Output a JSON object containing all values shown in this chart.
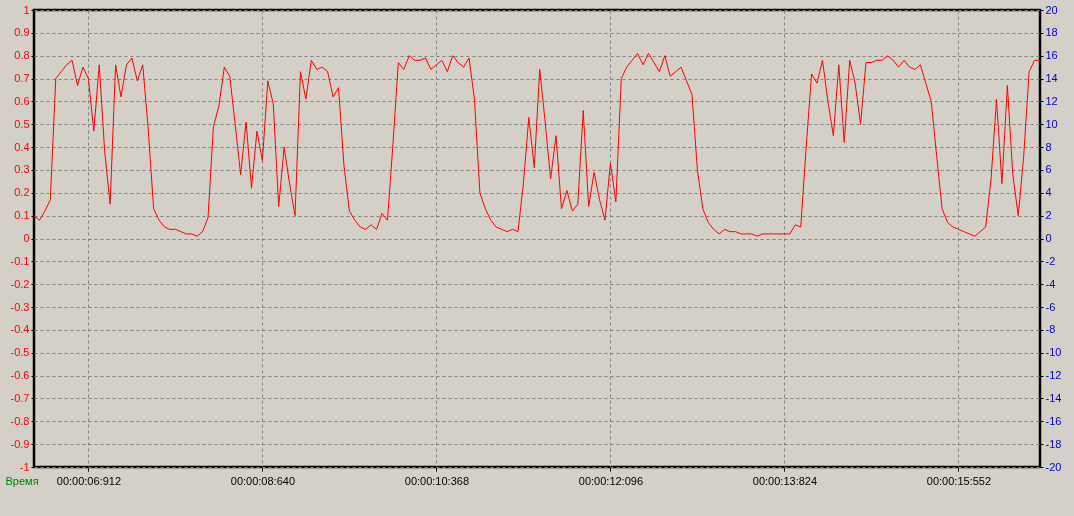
{
  "chart_data": {
    "type": "line",
    "xlabel": "Время",
    "categories": [
      null,
      null,
      null,
      null,
      null,
      null,
      null,
      null,
      null,
      null,
      "00:00:06:912",
      null,
      null,
      null,
      null,
      null,
      null,
      null,
      null,
      null,
      null,
      null,
      null,
      null,
      null,
      null,
      null,
      null,
      null,
      null,
      null,
      null,
      null,
      null,
      null,
      null,
      null,
      null,
      null,
      null,
      null,
      null,
      "00:00:08:640",
      null,
      null,
      null,
      null,
      null,
      null,
      null,
      null,
      null,
      null,
      null,
      null,
      null,
      null,
      null,
      null,
      null,
      null,
      null,
      null,
      null,
      null,
      null,
      null,
      null,
      null,
      null,
      null,
      null,
      null,
      null,
      "00:00:10:368",
      null,
      null,
      null,
      null,
      null,
      null,
      null,
      null,
      null,
      null,
      null,
      null,
      null,
      null,
      null,
      null,
      null,
      null,
      null,
      null,
      null,
      null,
      null,
      null,
      null,
      null,
      null,
      null,
      null,
      null,
      null,
      "00:00:12:096",
      null,
      null,
      null,
      null,
      null,
      null,
      null,
      null,
      null,
      null,
      null,
      null,
      null,
      null,
      null,
      null,
      null,
      null,
      null,
      null,
      null,
      null,
      null,
      null,
      null,
      null,
      null,
      null,
      null,
      null,
      null,
      "00:00:13:824",
      null,
      null,
      null,
      null,
      null,
      null,
      null,
      null,
      null,
      null,
      null,
      null,
      null,
      null,
      null,
      null,
      null,
      null,
      null,
      null,
      null,
      null,
      null,
      null,
      null,
      null,
      null,
      null,
      null,
      null,
      null,
      "00:00:15:552",
      null,
      null,
      null,
      null,
      null,
      null,
      null,
      null,
      null,
      null,
      null,
      null,
      null,
      null,
      null
    ],
    "series": [
      {
        "color": "#ff0000",
        "values": [
          0.1,
          0.08,
          0.12,
          0.17,
          0.7,
          0.73,
          0.76,
          0.78,
          0.67,
          0.75,
          0.7,
          0.47,
          0.76,
          0.38,
          0.15,
          0.76,
          0.62,
          0.76,
          0.79,
          0.69,
          0.76,
          0.48,
          0.13,
          0.08,
          0.05,
          0.04,
          0.04,
          0.03,
          0.02,
          0.02,
          0.01,
          0.03,
          0.09,
          0.49,
          0.58,
          0.75,
          0.71,
          0.5,
          0.28,
          0.51,
          0.22,
          0.47,
          0.34,
          0.69,
          0.59,
          0.14,
          0.4,
          0.24,
          0.1,
          0.73,
          0.61,
          0.78,
          0.74,
          0.75,
          0.73,
          0.62,
          0.66,
          0.32,
          0.12,
          0.08,
          0.05,
          0.04,
          0.06,
          0.04,
          0.11,
          0.08,
          0.41,
          0.77,
          0.74,
          0.8,
          0.78,
          0.78,
          0.79,
          0.74,
          0.76,
          0.78,
          0.73,
          0.8,
          0.77,
          0.75,
          0.79,
          0.61,
          0.2,
          0.13,
          0.08,
          0.05,
          0.04,
          0.03,
          0.04,
          0.03,
          0.24,
          0.53,
          0.31,
          0.74,
          0.51,
          0.26,
          0.45,
          0.13,
          0.21,
          0.12,
          0.15,
          0.56,
          0.14,
          0.29,
          0.17,
          0.08,
          0.33,
          0.16,
          0.7,
          0.75,
          0.78,
          0.81,
          0.76,
          0.81,
          0.77,
          0.73,
          0.8,
          0.71,
          0.73,
          0.75,
          0.69,
          0.63,
          0.3,
          0.13,
          0.07,
          0.04,
          0.02,
          0.04,
          0.03,
          0.03,
          0.02,
          0.02,
          0.02,
          0.01,
          0.02,
          0.02,
          0.02,
          0.02,
          0.02,
          0.02,
          0.06,
          0.05,
          0.4,
          0.72,
          0.68,
          0.78,
          0.6,
          0.45,
          0.76,
          0.42,
          0.78,
          0.68,
          0.5,
          0.77,
          0.77,
          0.78,
          0.78,
          0.8,
          0.78,
          0.75,
          0.78,
          0.75,
          0.74,
          0.76,
          0.68,
          0.6,
          0.36,
          0.13,
          0.07,
          0.05,
          0.04,
          0.03,
          0.02,
          0.01,
          0.03,
          0.05,
          0.26,
          0.61,
          0.24,
          0.67,
          0.28,
          0.1,
          0.36,
          0.73,
          0.78,
          0.78
        ]
      }
    ],
    "ylim": [
      -1,
      1
    ],
    "yticks": [
      -1,
      -0.9,
      -0.8,
      -0.7,
      -0.6,
      -0.5,
      -0.4,
      -0.3,
      -0.2,
      -0.1,
      0,
      0.1,
      0.2,
      0.3,
      0.4,
      0.5,
      0.6,
      0.7,
      0.8,
      0.9,
      1
    ],
    "y2lim": [
      -20,
      20
    ],
    "y2ticks": [
      -20,
      -18,
      -16,
      -14,
      -12,
      -10,
      -8,
      -6,
      -4,
      -2,
      0,
      2,
      4,
      6,
      8,
      10,
      12,
      14,
      16,
      18,
      20
    ],
    "grid": true
  }
}
